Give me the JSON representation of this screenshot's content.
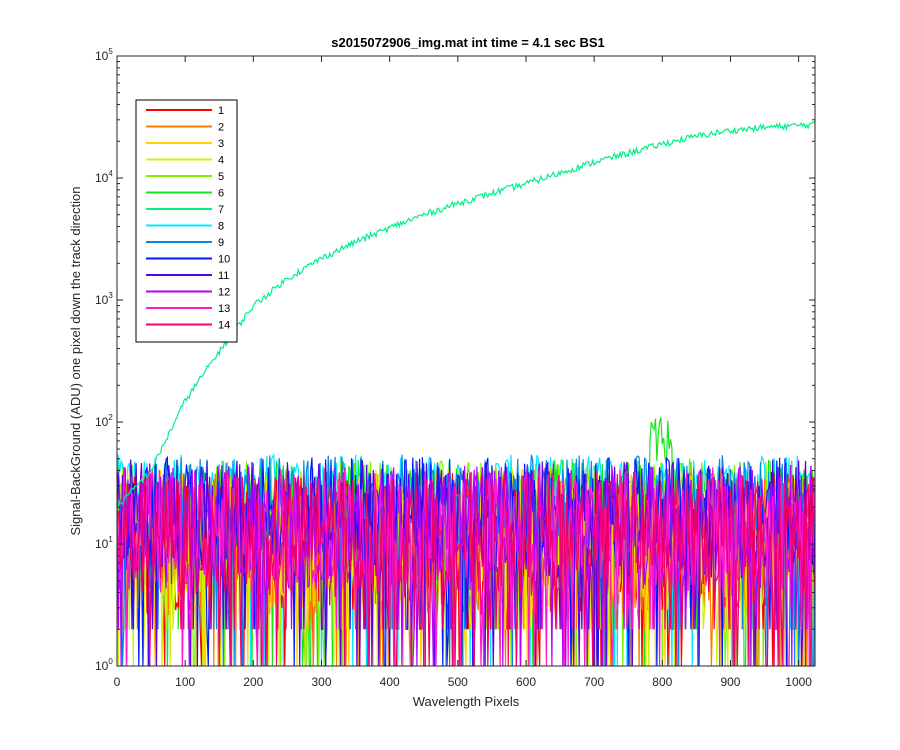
{
  "chart_data": {
    "type": "line",
    "title": "s2015072906_img.mat int time = 4.1 sec   BS1",
    "xlabel": "Wavelength Pixels",
    "ylabel": "Signal-BackGround (ADU) one pixel down the track direction",
    "xlim": [
      0,
      1024
    ],
    "ylim": [
      1,
      100000
    ],
    "yscale": "log",
    "xticks": [
      0,
      100,
      200,
      300,
      400,
      500,
      600,
      700,
      800,
      900,
      1000
    ],
    "yticks": [
      {
        "base": "10",
        "exp": "0",
        "value": 1
      },
      {
        "base": "10",
        "exp": "1",
        "value": 10
      },
      {
        "base": "10",
        "exp": "2",
        "value": 100
      },
      {
        "base": "10",
        "exp": "3",
        "value": 1000
      },
      {
        "base": "10",
        "exp": "4",
        "value": 10000
      },
      {
        "base": "10",
        "exp": "5",
        "value": 100000
      }
    ],
    "legend_position": "top-left",
    "grid": false,
    "series": [
      {
        "name": "1",
        "color": "#ff0000",
        "level": 10,
        "spread": 0.9
      },
      {
        "name": "2",
        "color": "#ff7a00",
        "level": 10,
        "spread": 0.9
      },
      {
        "name": "3",
        "color": "#ffd200",
        "level": 11,
        "spread": 0.9
      },
      {
        "name": "4",
        "color": "#d4ef00",
        "level": 11,
        "spread": 0.9
      },
      {
        "name": "5",
        "color": "#7ff000",
        "level": 13,
        "spread": 0.9
      },
      {
        "name": "6",
        "color": "#19e619",
        "level": 20,
        "spread": 0.6
      },
      {
        "name": "7",
        "color": "#00f08a",
        "signal": [
          [
            0,
            20
          ],
          [
            50,
            40
          ],
          [
            100,
            150
          ],
          [
            150,
            380
          ],
          [
            200,
            900
          ],
          [
            250,
            1500
          ],
          [
            300,
            2200
          ],
          [
            350,
            3000
          ],
          [
            400,
            3900
          ],
          [
            450,
            5000
          ],
          [
            500,
            6200
          ],
          [
            550,
            7500
          ],
          [
            600,
            9000
          ],
          [
            650,
            11000
          ],
          [
            700,
            13500
          ],
          [
            750,
            16000
          ],
          [
            800,
            19000
          ],
          [
            850,
            22000
          ],
          [
            900,
            24500
          ],
          [
            950,
            26000
          ],
          [
            1000,
            27000
          ],
          [
            1024,
            27500
          ]
        ]
      },
      {
        "name": "8",
        "color": "#00eaff",
        "level": 32,
        "spread": 0.35
      },
      {
        "name": "9",
        "color": "#0a87e6",
        "level": 22,
        "spread": 0.6
      },
      {
        "name": "10",
        "color": "#0019ff",
        "level": 18,
        "spread": 0.7
      },
      {
        "name": "11",
        "color": "#5a00e6",
        "level": 16,
        "spread": 0.75
      },
      {
        "name": "12",
        "color": "#b400ff",
        "level": 14,
        "spread": 0.8
      },
      {
        "name": "13",
        "color": "#ff19c8",
        "level": 13,
        "spread": 0.8
      },
      {
        "name": "14",
        "color": "#f0006e",
        "level": 12,
        "spread": 0.8
      }
    ]
  }
}
